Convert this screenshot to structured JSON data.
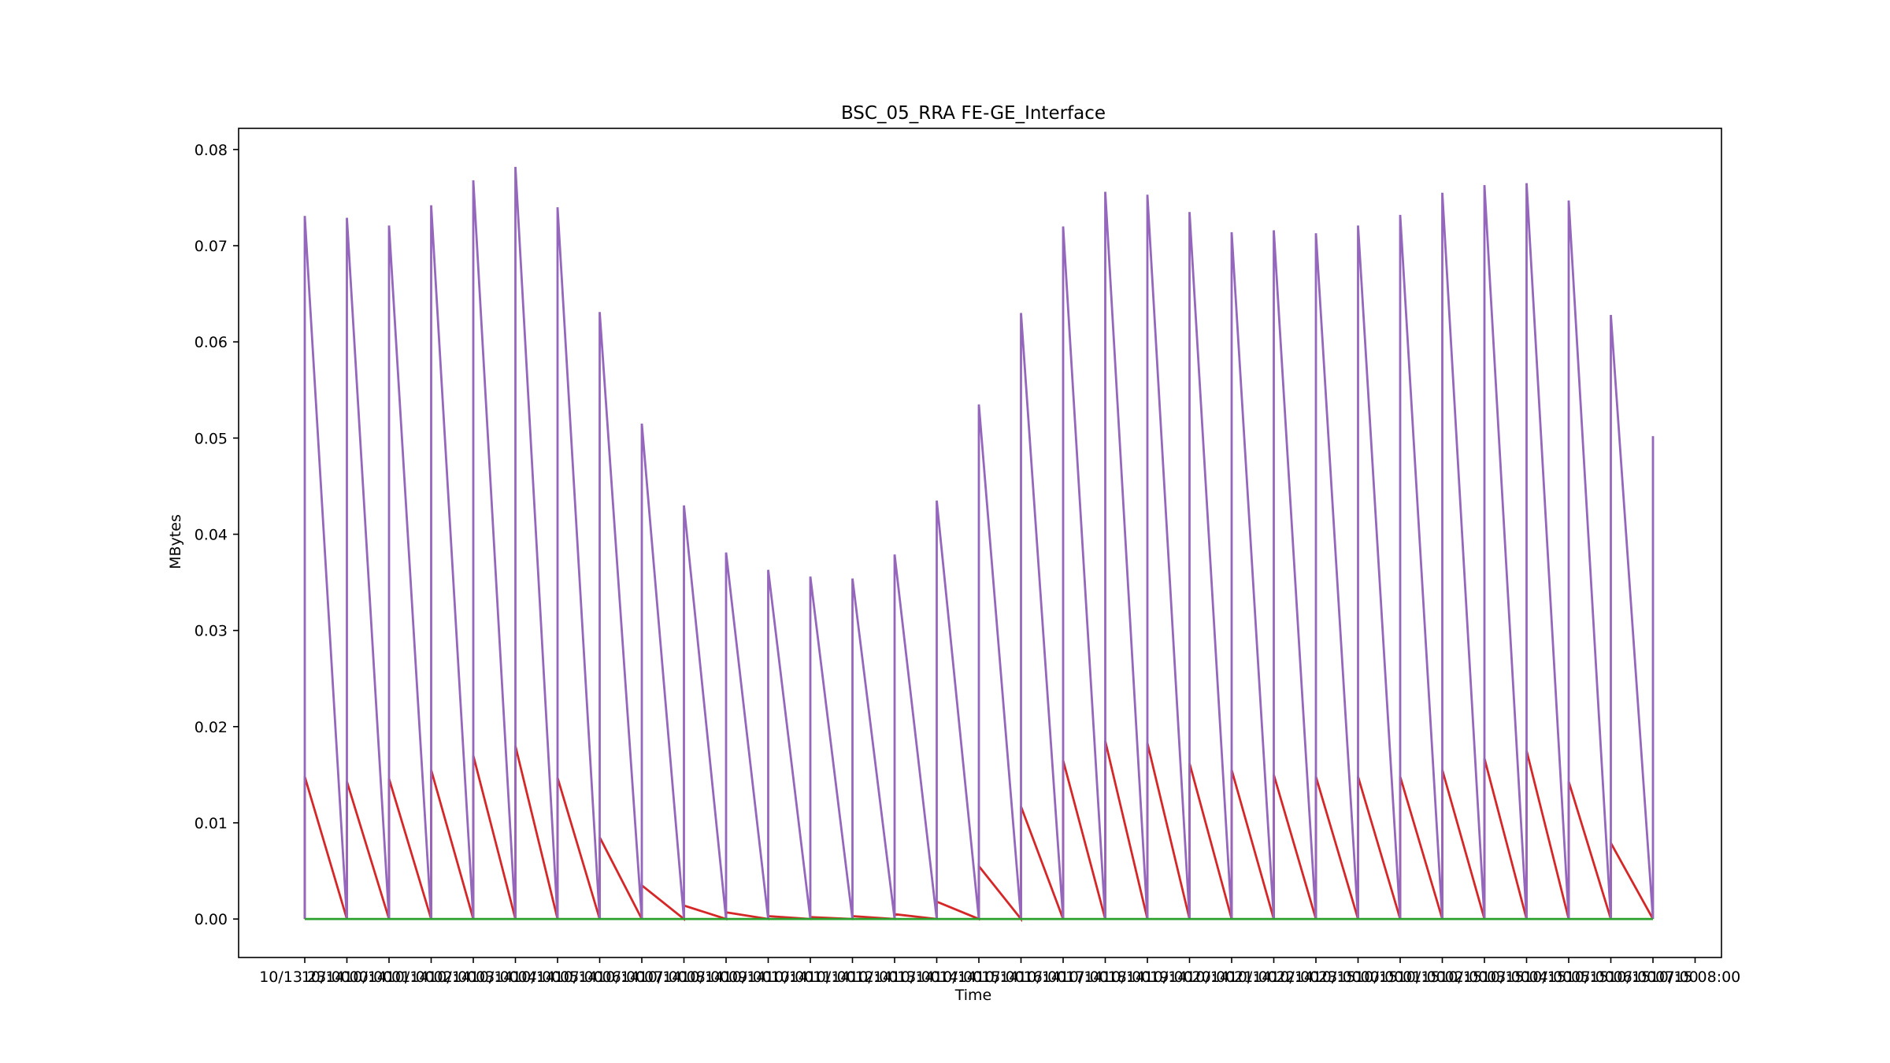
{
  "chart_data": {
    "type": "line",
    "title": "BSC_05_RRA FE-GE_Interface",
    "xlabel": "Time",
    "ylabel": "MBytes",
    "ylim": [
      -0.004,
      0.0822
    ],
    "yticks": [
      0.0,
      0.01,
      0.02,
      0.03,
      0.04,
      0.05,
      0.06,
      0.07,
      0.08
    ],
    "ytick_labels": [
      "0.00",
      "0.01",
      "0.02",
      "0.03",
      "0.04",
      "0.05",
      "0.06",
      "0.07",
      "0.08"
    ],
    "grid": false,
    "x_hours": [
      "10/13 23:00",
      "10/14 00:00",
      "10/14 01:00",
      "10/14 02:00",
      "10/14 03:00",
      "10/14 04:00",
      "10/14 05:00",
      "10/14 06:00",
      "10/14 07:00",
      "10/14 08:00",
      "10/14 09:00",
      "10/14 10:00",
      "10/14 11:00",
      "10/14 12:00",
      "10/14 13:00",
      "10/14 14:00",
      "10/14 15:00",
      "10/14 16:00",
      "10/14 17:00",
      "10/14 18:00",
      "10/14 19:00",
      "10/14 20:00",
      "10/14 21:00",
      "10/14 22:00",
      "10/14 23:00",
      "10/15 00:00",
      "10/15 01:00",
      "10/15 02:00",
      "10/15 03:00",
      "10/15 04:00",
      "10/15 05:00",
      "10/15 06:00",
      "10/15 07:00",
      "10/15 08:00"
    ],
    "series": [
      {
        "color": "#d62728",
        "values": [
          0.0148,
          0.0143,
          0.0146,
          0.0155,
          0.017,
          0.018,
          0.0147,
          0.0085,
          0.0035,
          0.0014,
          0.0007,
          0.0003,
          0.0002,
          0.0003,
          0.0005,
          0.0018,
          0.0055,
          0.0117,
          0.0165,
          0.0185,
          0.0183,
          0.0162,
          0.0155,
          0.015,
          0.0148,
          0.0148,
          0.0148,
          0.0155,
          0.0167,
          0.0175,
          0.0143,
          0.0079,
          0.0
        ]
      },
      {
        "color": "#9467bd",
        "values": [
          0.0731,
          0.0729,
          0.0721,
          0.0742,
          0.0768,
          0.0782,
          0.074,
          0.0631,
          0.0515,
          0.043,
          0.0381,
          0.0363,
          0.0356,
          0.0354,
          0.0379,
          0.0435,
          0.0535,
          0.063,
          0.072,
          0.0756,
          0.0753,
          0.0735,
          0.0714,
          0.0716,
          0.0713,
          0.0721,
          0.0732,
          0.0755,
          0.0763,
          0.0765,
          0.0747,
          0.0628,
          0.0502
        ]
      },
      {
        "color": "#2ca02c",
        "values": [
          0.0,
          0.0,
          0.0,
          0.0,
          0.0,
          0.0,
          0.0,
          0.0,
          0.0,
          0.0,
          0.0,
          0.0,
          0.0,
          0.0,
          0.0,
          0.0,
          0.0,
          0.0,
          0.0,
          0.0,
          0.0,
          0.0,
          0.0,
          0.0,
          0.0,
          0.0,
          0.0,
          0.0,
          0.0,
          0.0,
          0.0,
          0.0,
          0.0
        ]
      }
    ]
  }
}
